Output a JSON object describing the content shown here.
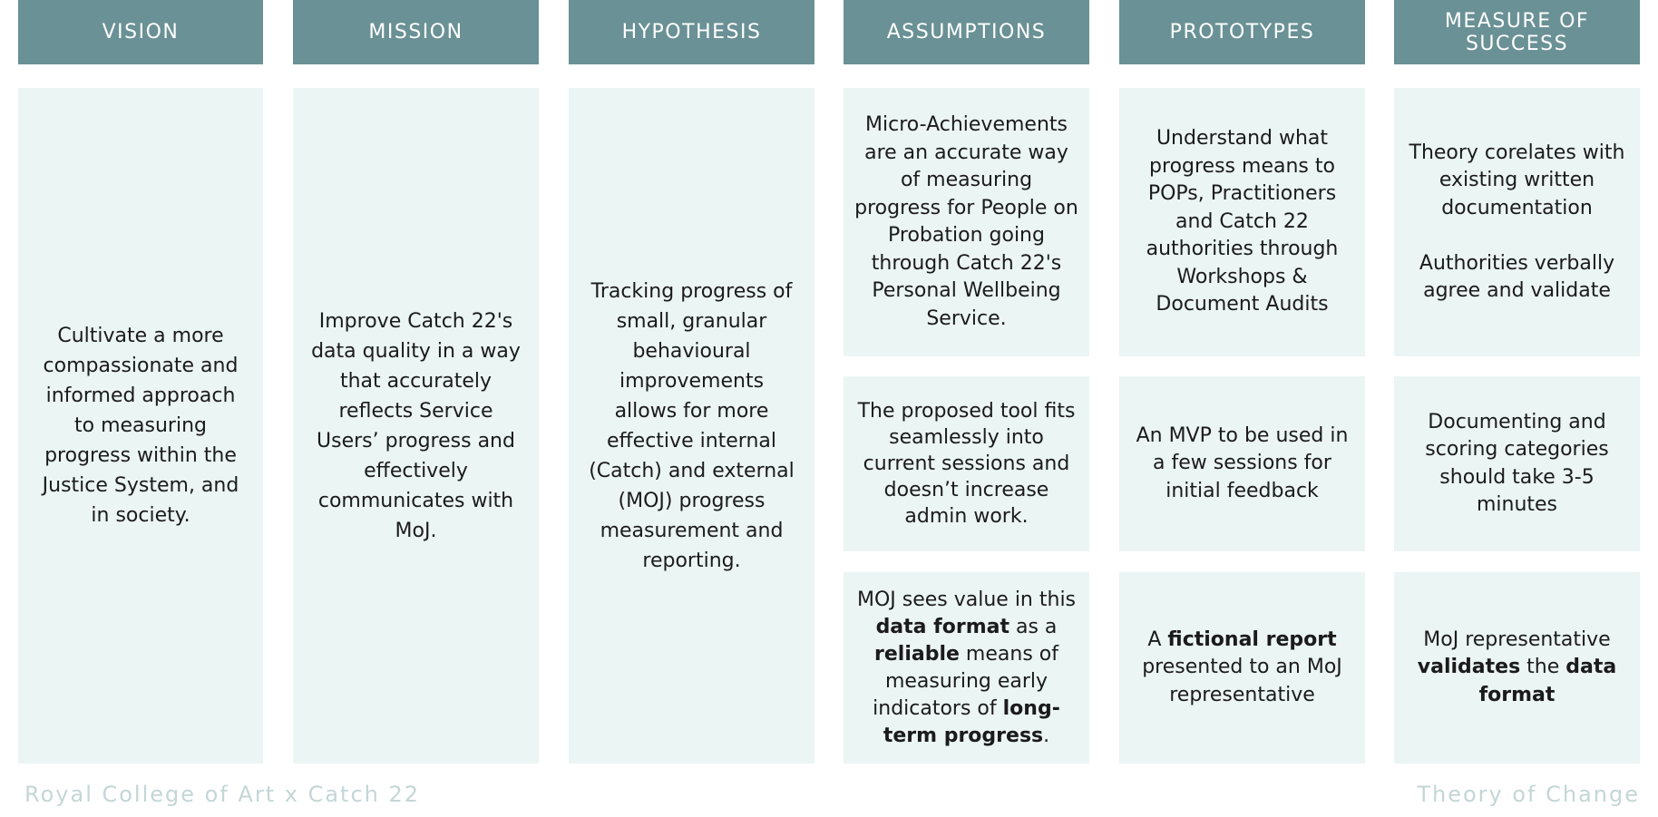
{
  "headers": [
    "VISION",
    "MISSION",
    "HYPOTHESIS",
    "ASSUMPTIONS",
    "PROTOTYPES",
    "MEASURE OF SUCCESS"
  ],
  "columns": {
    "vision": "Cultivate a more compassionate and informed approach to measuring progress within the Justice System, and in society.",
    "mission": "Improve Catch 22's data quality in a way that accurately reflects Service Users’ progress and effectively communicates with MoJ.",
    "hypothesis": "Tracking progress of small, granular behavioural improvements allows for more effective internal (Catch) and external (MOJ) progress measurement and reporting."
  },
  "assumptions": {
    "a1": "Micro-Achievements are an accurate way of measuring progress for People on Probation going through Catch 22's Personal Wellbeing Service.",
    "a2": "The proposed tool fits seamlessly into current sessions and doesn’t increase admin work.",
    "a3": {
      "p1": "MOJ sees value in this ",
      "b1": "data format",
      "p2": " as a ",
      "b2": "reliable",
      "p3": " means of measuring early indicators of ",
      "b3": "long-term progress",
      "p4": "."
    }
  },
  "prototypes": {
    "p1": "Understand what progress means to POPs, Practitioners and Catch 22 authorities through Workshops & Document Audits",
    "p2": "An MVP to be used in a few sessions for initial feedback",
    "p3": {
      "t1": "A ",
      "b1": "fictional report",
      "t2": " presented to an MoJ representative"
    }
  },
  "measures": {
    "m1": "Theory corelates with existing written documentation\n\nAuthorities verbally agree and validate",
    "m2": "Documenting and scoring categories should take 3-5 minutes",
    "m3": {
      "t1": "MoJ representative ",
      "b1": "validates",
      "t2": " the ",
      "b2": "data format"
    }
  },
  "footer": {
    "left": "Royal College of Art x Catch 22",
    "right": "Theory of Change"
  }
}
